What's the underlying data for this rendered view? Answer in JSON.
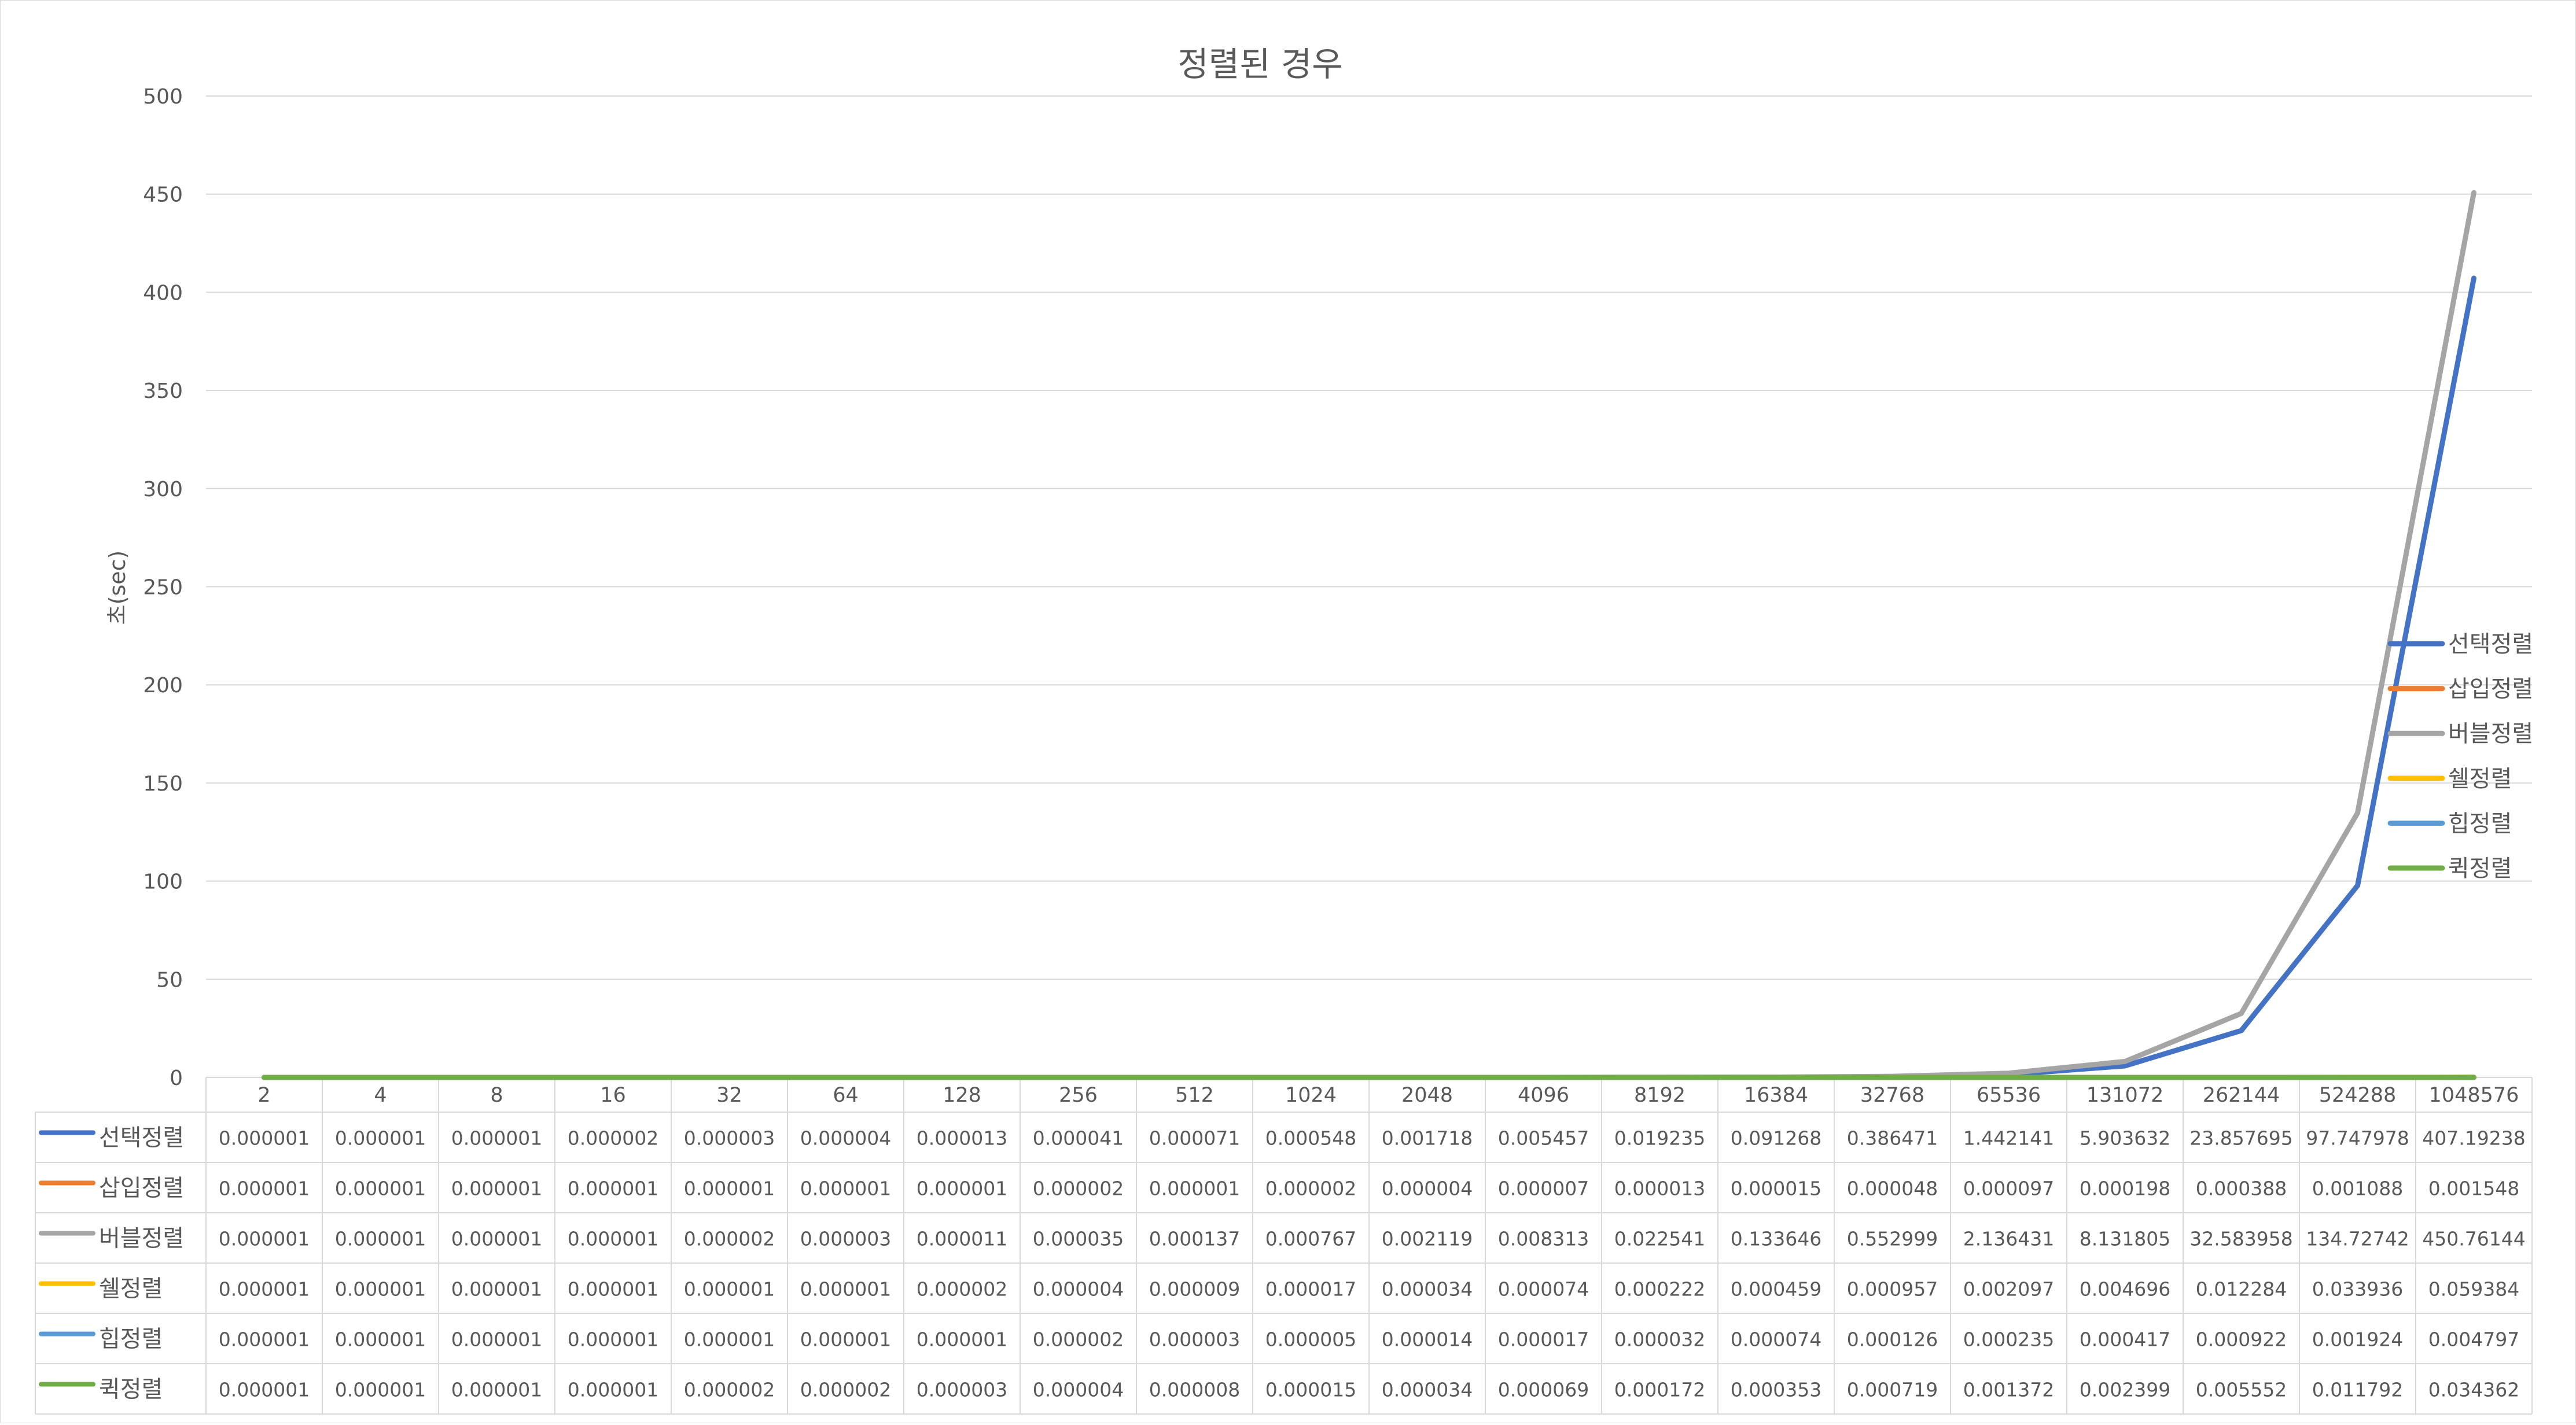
{
  "chart_data": {
    "type": "line",
    "title": "정렬된 경우",
    "ylabel": "초(sec)",
    "xlabel": "",
    "ylim": [
      0,
      500
    ],
    "yticks": [
      0,
      50,
      100,
      150,
      200,
      250,
      300,
      350,
      400,
      450,
      500
    ],
    "grid": true,
    "legend_position": "right",
    "data_table": true,
    "categories": [
      "2",
      "4",
      "8",
      "16",
      "32",
      "64",
      "128",
      "256",
      "512",
      "1024",
      "2048",
      "4096",
      "8192",
      "16384",
      "32768",
      "65536",
      "131072",
      "262144",
      "524288",
      "1048576"
    ],
    "series": [
      {
        "name": "선택정렬",
        "color": "#4472c4",
        "labels": [
          "0.000001",
          "0.000001",
          "0.000001",
          "0.000002",
          "0.000003",
          "0.000004",
          "0.000013",
          "0.000041",
          "0.000071",
          "0.000548",
          "0.001718",
          "0.005457",
          "0.019235",
          "0.091268",
          "0.386471",
          "1.442141",
          "5.903632",
          "23.857695",
          "97.747978",
          "407.19238"
        ],
        "values": [
          1e-06,
          1e-06,
          1e-06,
          2e-06,
          3e-06,
          4e-06,
          1.3e-05,
          4.1e-05,
          7.1e-05,
          0.000548,
          0.001718,
          0.005457,
          0.019235,
          0.091268,
          0.386471,
          1.442141,
          5.903632,
          23.857695,
          97.747978,
          407.19238
        ]
      },
      {
        "name": "삽입정렬",
        "color": "#ed7d31",
        "labels": [
          "0.000001",
          "0.000001",
          "0.000001",
          "0.000001",
          "0.000001",
          "0.000001",
          "0.000001",
          "0.000002",
          "0.000001",
          "0.000002",
          "0.000004",
          "0.000007",
          "0.000013",
          "0.000015",
          "0.000048",
          "0.000097",
          "0.000198",
          "0.000388",
          "0.001088",
          "0.001548"
        ],
        "values": [
          1e-06,
          1e-06,
          1e-06,
          1e-06,
          1e-06,
          1e-06,
          1e-06,
          2e-06,
          1e-06,
          2e-06,
          4e-06,
          7e-06,
          1.3e-05,
          1.5e-05,
          4.8e-05,
          9.7e-05,
          0.000198,
          0.000388,
          0.001088,
          0.001548
        ]
      },
      {
        "name": "버블정렬",
        "color": "#a5a5a5",
        "labels": [
          "0.000001",
          "0.000001",
          "0.000001",
          "0.000001",
          "0.000002",
          "0.000003",
          "0.000011",
          "0.000035",
          "0.000137",
          "0.000767",
          "0.002119",
          "0.008313",
          "0.022541",
          "0.133646",
          "0.552999",
          "2.136431",
          "8.131805",
          "32.583958",
          "134.72742",
          "450.76144"
        ],
        "values": [
          1e-06,
          1e-06,
          1e-06,
          1e-06,
          2e-06,
          3e-06,
          1.1e-05,
          3.5e-05,
          0.000137,
          0.000767,
          0.002119,
          0.008313,
          0.022541,
          0.133646,
          0.552999,
          2.136431,
          8.131805,
          32.583958,
          134.72742,
          450.76144
        ]
      },
      {
        "name": "쉘정렬",
        "color": "#ffc000",
        "labels": [
          "0.000001",
          "0.000001",
          "0.000001",
          "0.000001",
          "0.000001",
          "0.000001",
          "0.000002",
          "0.000004",
          "0.000009",
          "0.000017",
          "0.000034",
          "0.000074",
          "0.000222",
          "0.000459",
          "0.000957",
          "0.002097",
          "0.004696",
          "0.012284",
          "0.033936",
          "0.059384"
        ],
        "values": [
          1e-06,
          1e-06,
          1e-06,
          1e-06,
          1e-06,
          1e-06,
          2e-06,
          4e-06,
          9e-06,
          1.7e-05,
          3.4e-05,
          7.4e-05,
          0.000222,
          0.000459,
          0.000957,
          0.002097,
          0.004696,
          0.012284,
          0.033936,
          0.059384
        ]
      },
      {
        "name": "힙정렬",
        "color": "#5b9bd5",
        "labels": [
          "0.000001",
          "0.000001",
          "0.000001",
          "0.000001",
          "0.000001",
          "0.000001",
          "0.000001",
          "0.000002",
          "0.000003",
          "0.000005",
          "0.000014",
          "0.000017",
          "0.000032",
          "0.000074",
          "0.000126",
          "0.000235",
          "0.000417",
          "0.000922",
          "0.001924",
          "0.004797"
        ],
        "values": [
          1e-06,
          1e-06,
          1e-06,
          1e-06,
          1e-06,
          1e-06,
          1e-06,
          2e-06,
          3e-06,
          5e-06,
          1.4e-05,
          1.7e-05,
          3.2e-05,
          7.4e-05,
          0.000126,
          0.000235,
          0.000417,
          0.000922,
          0.001924,
          0.004797
        ]
      },
      {
        "name": "퀵정렬",
        "color": "#70ad47",
        "labels": [
          "0.000001",
          "0.000001",
          "0.000001",
          "0.000001",
          "0.000002",
          "0.000002",
          "0.000003",
          "0.000004",
          "0.000008",
          "0.000015",
          "0.000034",
          "0.000069",
          "0.000172",
          "0.000353",
          "0.000719",
          "0.001372",
          "0.002399",
          "0.005552",
          "0.011792",
          "0.034362"
        ],
        "values": [
          1e-06,
          1e-06,
          1e-06,
          1e-06,
          2e-06,
          2e-06,
          3e-06,
          4e-06,
          8e-06,
          1.5e-05,
          3.4e-05,
          6.9e-05,
          0.000172,
          0.000353,
          0.000719,
          0.001372,
          0.002399,
          0.005552,
          0.011792,
          0.034362
        ]
      }
    ]
  }
}
